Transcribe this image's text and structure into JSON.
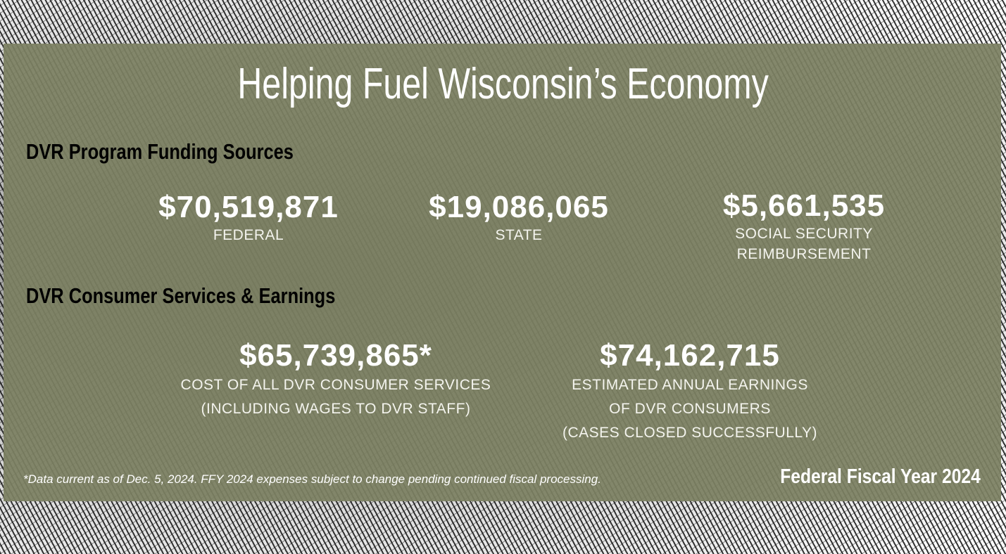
{
  "title": "Helping Fuel Wisconsin’s Economy",
  "funding": {
    "heading": "DVR Program Funding Sources",
    "items": [
      {
        "amount": "$70,519,871",
        "label": [
          "FEDERAL"
        ]
      },
      {
        "amount": "$19,086,065",
        "label": [
          "STATE"
        ]
      },
      {
        "amount": "$5,661,535",
        "label": [
          "SOCIAL SECURITY",
          "REIMBURSEMENT"
        ]
      }
    ]
  },
  "services": {
    "heading": "DVR Consumer Services & Earnings",
    "items": [
      {
        "amount": "$65,739,865*",
        "label": [
          "COST OF ALL DVR CONSUMER SERVICES",
          "(INCLUDING WAGES TO DVR STAFF)"
        ]
      },
      {
        "amount": "$74,162,715",
        "label": [
          "ESTIMATED ANNUAL EARNINGS",
          "OF DVR CONSUMERS",
          "(CASES CLOSED SUCCESSFULLY)"
        ]
      }
    ]
  },
  "footnote": "*Data current as of Dec. 5, 2024. FFY 2024 expenses subject to change pending continued fiscal processing.",
  "fiscal_year": "Federal Fiscal Year 2024"
}
